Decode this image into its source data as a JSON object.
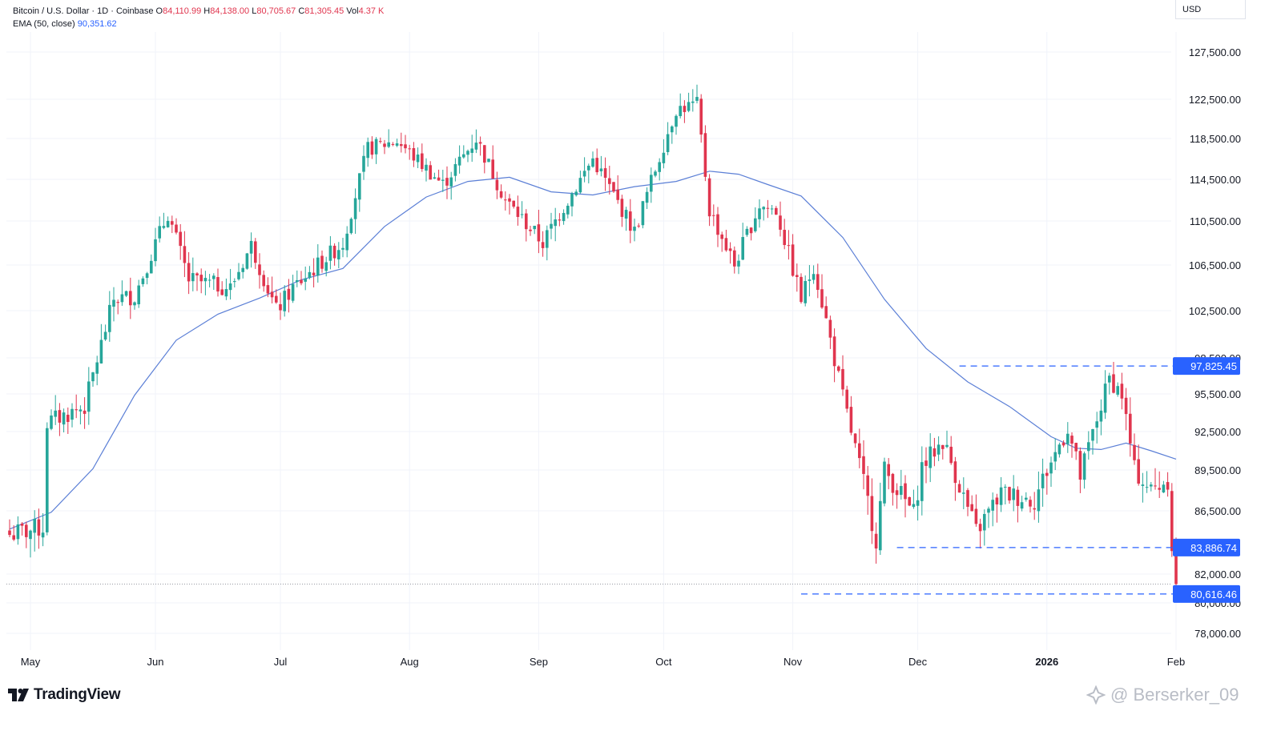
{
  "legend": {
    "symbol": "Bitcoin / U.S. Dollar · 1D · Coinbase",
    "open_label": "O",
    "open": "84,110.99",
    "high_label": "H",
    "high": "84,138.00",
    "low_label": "L",
    "low": "80,705.67",
    "close_label": "C",
    "close": "81,305.45",
    "vol_label": "Vol",
    "vol": "4.37 K",
    "ema_label": "EMA (50, close)",
    "ema_value": "90,351.62"
  },
  "currency": "USD",
  "branding": {
    "logo_text": "TradingView",
    "watermark": "@ Berserker_09"
  },
  "colors": {
    "up": "#26a69a",
    "down": "#e0354e",
    "ema": "#5b7fd6",
    "marker_bg": "#2962ff",
    "grid": "#f0f3fa"
  },
  "chart_data": {
    "type": "candlestick",
    "y_ticks": [
      {
        "value": 127500,
        "label": "127,500.00"
      },
      {
        "value": 122500,
        "label": "122,500.00"
      },
      {
        "value": 118500,
        "label": "118,500.00"
      },
      {
        "value": 114500,
        "label": "114,500.00"
      },
      {
        "value": 110500,
        "label": "110,500.00"
      },
      {
        "value": 106500,
        "label": "106,500.00"
      },
      {
        "value": 102500,
        "label": "102,500.00"
      },
      {
        "value": 98500,
        "label": "98,500.00"
      },
      {
        "value": 95500,
        "label": "95,500.00"
      },
      {
        "value": 92500,
        "label": "92,500.00"
      },
      {
        "value": 89500,
        "label": "89,500.00"
      },
      {
        "value": 86500,
        "label": "86,500.00"
      },
      {
        "value": 82000,
        "label": "82,000.00"
      },
      {
        "value": 80000,
        "label": "80,000.00"
      },
      {
        "value": 78000,
        "label": "78,000.00"
      }
    ],
    "x_ticks": [
      {
        "day": 5,
        "label": "May",
        "bold": false
      },
      {
        "day": 35,
        "label": "Jun",
        "bold": false
      },
      {
        "day": 65,
        "label": "Jul",
        "bold": false
      },
      {
        "day": 96,
        "label": "Aug",
        "bold": false
      },
      {
        "day": 127,
        "label": "Sep",
        "bold": false
      },
      {
        "day": 157,
        "label": "Oct",
        "bold": false
      },
      {
        "day": 188,
        "label": "Nov",
        "bold": false
      },
      {
        "day": 218,
        "label": "Dec",
        "bold": false
      },
      {
        "day": 249,
        "label": "2026",
        "bold": true
      },
      {
        "day": 280,
        "label": "Feb",
        "bold": false
      }
    ],
    "levels": [
      {
        "value": 97825.45,
        "label": "97,825.45",
        "from_day": 228
      },
      {
        "value": 83886.74,
        "label": "83,886.74",
        "from_day": 213
      },
      {
        "value": 80616.46,
        "label": "80,616.46",
        "from_day": 190
      }
    ],
    "last_close": 81305.45,
    "anchors": [
      [
        0,
        84800
      ],
      [
        8,
        85300
      ],
      [
        9,
        93200
      ],
      [
        18,
        94500
      ],
      [
        25,
        103500
      ],
      [
        30,
        103800
      ],
      [
        38,
        111200
      ],
      [
        43,
        105200
      ],
      [
        53,
        104500
      ],
      [
        58,
        108300
      ],
      [
        64,
        102500
      ],
      [
        68,
        104500
      ],
      [
        80,
        108500
      ],
      [
        86,
        117500
      ],
      [
        93,
        118300
      ],
      [
        104,
        114000
      ],
      [
        112,
        118500
      ],
      [
        119,
        112500
      ],
      [
        128,
        108500
      ],
      [
        140,
        116500
      ],
      [
        150,
        109500
      ],
      [
        160,
        121500
      ],
      [
        165,
        122000
      ],
      [
        168,
        111500
      ],
      [
        174,
        106500
      ],
      [
        180,
        112000
      ],
      [
        184,
        111500
      ],
      [
        190,
        103500
      ],
      [
        193,
        106500
      ],
      [
        200,
        95200
      ],
      [
        208,
        84500
      ],
      [
        210,
        89500
      ],
      [
        217,
        86300
      ],
      [
        219,
        89800
      ],
      [
        224,
        91800
      ],
      [
        232,
        85000
      ],
      [
        238,
        87800
      ],
      [
        246,
        87300
      ],
      [
        248,
        88800
      ],
      [
        254,
        92800
      ],
      [
        257,
        89000
      ],
      [
        264,
        96800
      ],
      [
        267,
        95500
      ],
      [
        270,
        89500
      ],
      [
        274,
        88000
      ],
      [
        278,
        88800
      ],
      [
        279,
        84100
      ],
      [
        280,
        81305
      ]
    ],
    "ema_points": [
      [
        0,
        85200
      ],
      [
        10,
        86400
      ],
      [
        20,
        89600
      ],
      [
        30,
        95400
      ],
      [
        40,
        100000
      ],
      [
        50,
        102200
      ],
      [
        60,
        103600
      ],
      [
        70,
        105200
      ],
      [
        80,
        106200
      ],
      [
        90,
        110000
      ],
      [
        100,
        112800
      ],
      [
        110,
        114300
      ],
      [
        120,
        114700
      ],
      [
        130,
        113300
      ],
      [
        140,
        113000
      ],
      [
        150,
        113800
      ],
      [
        160,
        114300
      ],
      [
        168,
        115300
      ],
      [
        175,
        115000
      ],
      [
        182,
        114000
      ],
      [
        190,
        112900
      ],
      [
        200,
        109000
      ],
      [
        210,
        103500
      ],
      [
        220,
        99300
      ],
      [
        230,
        96500
      ],
      [
        240,
        94500
      ],
      [
        250,
        92100
      ],
      [
        256,
        91200
      ],
      [
        262,
        91100
      ],
      [
        268,
        91600
      ],
      [
        274,
        91000
      ],
      [
        280,
        90350
      ]
    ]
  }
}
